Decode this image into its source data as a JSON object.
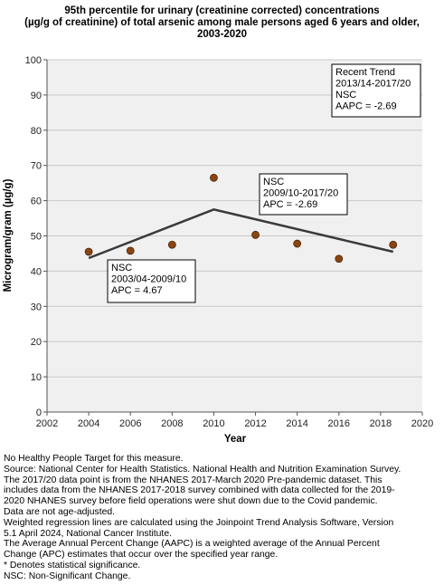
{
  "chart_data": {
    "type": "scatter",
    "title_lines": [
      "95th percentile for urinary (creatinine corrected) concentrations",
      "(µg/g of creatinine) of total arsenic among male persons aged 6 years and older,",
      "2003-2020"
    ],
    "xlabel": "Year",
    "ylabel": "Microgram/gram (µg/g)",
    "xlim": [
      2002,
      2020
    ],
    "ylim": [
      0,
      100
    ],
    "x_ticks": [
      2002,
      2004,
      2006,
      2008,
      2010,
      2012,
      2014,
      2016,
      2018,
      2020
    ],
    "y_ticks": [
      0,
      10,
      20,
      30,
      40,
      50,
      60,
      70,
      80,
      90,
      100
    ],
    "grid": "horizontal",
    "points": [
      {
        "x": 2004,
        "y": 45.5
      },
      {
        "x": 2006,
        "y": 45.8
      },
      {
        "x": 2008,
        "y": 47.5
      },
      {
        "x": 2010,
        "y": 66.5
      },
      {
        "x": 2012,
        "y": 50.3
      },
      {
        "x": 2014,
        "y": 47.8
      },
      {
        "x": 2016,
        "y": 43.5
      },
      {
        "x": 2018.6,
        "y": 47.5
      }
    ],
    "trend_line": [
      {
        "x": 2004,
        "y": 43.7
      },
      {
        "x": 2010,
        "y": 57.5
      },
      {
        "x": 2018.6,
        "y": 45.5
      }
    ],
    "annotations": [
      {
        "lines": [
          "NSC",
          "2003/04-2009/10",
          "APC =  4.67"
        ]
      },
      {
        "lines": [
          "NSC",
          "2009/10-2017/20",
          "APC = -2.69"
        ]
      },
      {
        "lines": [
          "Recent Trend",
          "2013/14-2017/20",
          "NSC",
          "AAPC = -2.69"
        ]
      }
    ],
    "colors": {
      "marker": "#8b4513",
      "marker_stroke": "#4a2408",
      "trend": "#3a3a3a",
      "plot_bg": "#f0f0f0",
      "grid": "#c8c8c8"
    }
  },
  "footnotes": [
    "No Healthy People Target for this measure.",
    "Source: National Center for Health Statistics. National Health and Nutrition Examination Survey.",
    "The 2017/20 data point is from the NHANES 2017-March 2020 Pre-pandemic dataset. This",
    "includes data from the NHANES 2017-2018 survey combined with data collected for the 2019-",
    "2020 NHANES survey before field operations were shut down due to the Covid pandemic.",
    "Data are not age-adjusted.",
    "Weighted regression lines are calculated using the Joinpoint Trend Analysis Software, Version",
    "5.1 April 2024, National Cancer Institute.",
    "The Average Annual Percent Change (AAPC) is a weighted average of the Annual Percent",
    "Change (APC) estimates that occur over the specified year range.",
    "* Denotes statistical significance.",
    "NSC: Non-Significant Change."
  ]
}
